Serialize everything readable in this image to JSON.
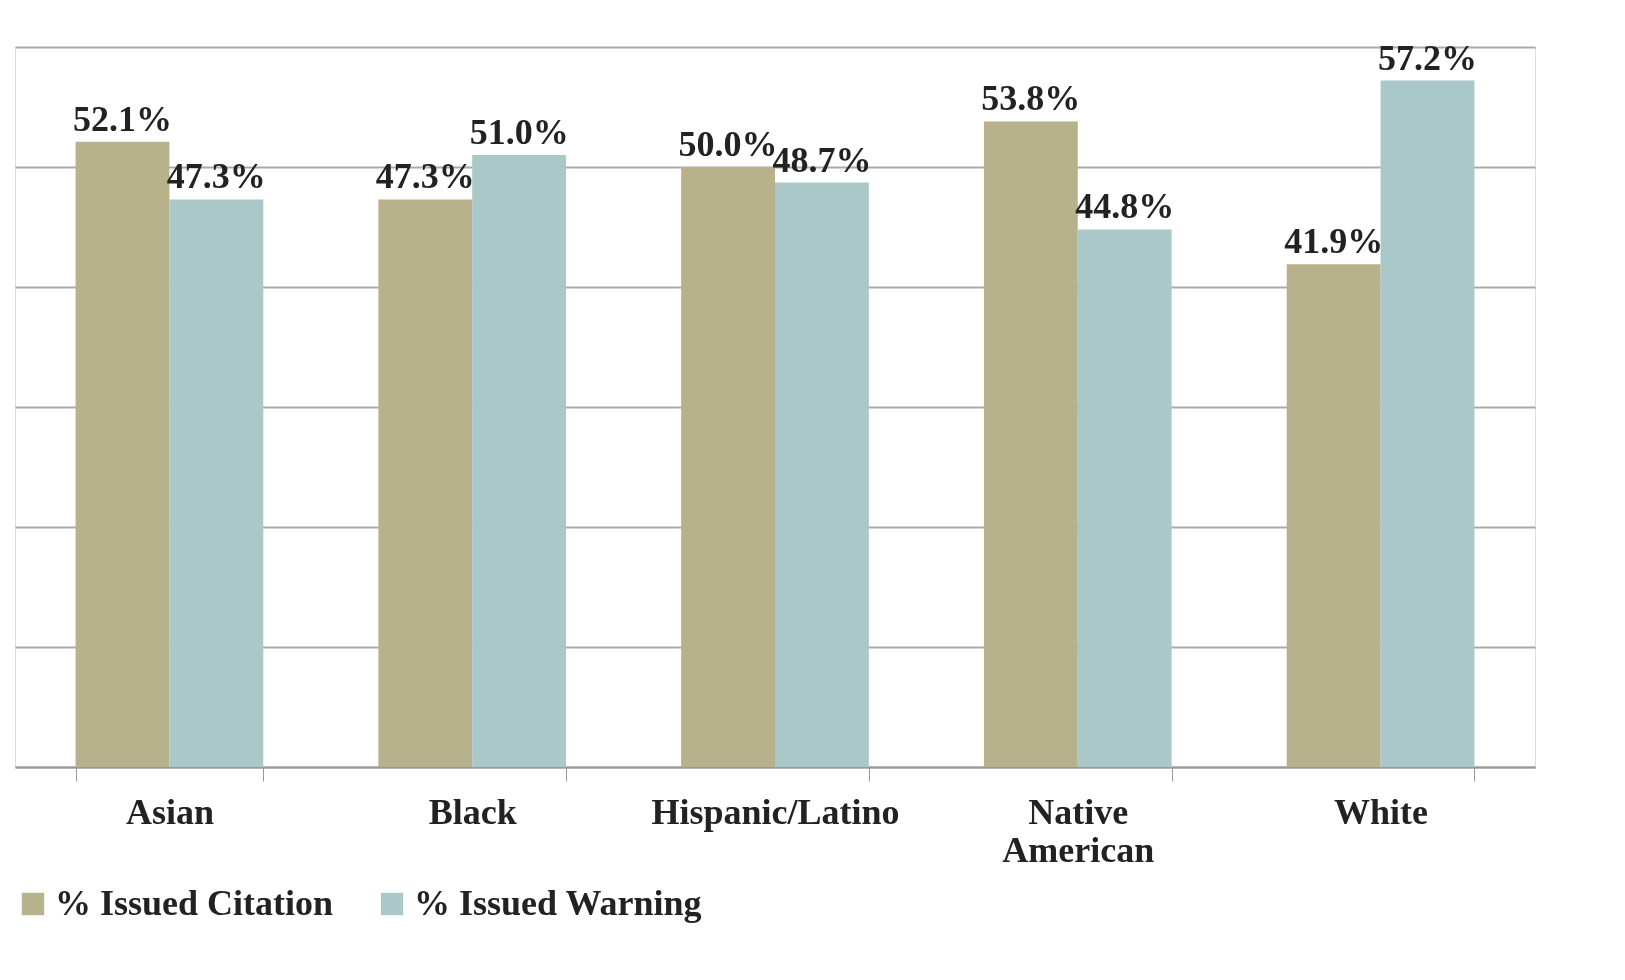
{
  "chart_data": {
    "type": "bar",
    "categories": [
      "Asian",
      "Black",
      "Hispanic/Latino",
      "Native American",
      "White"
    ],
    "series": [
      {
        "name": "% Issued Citation",
        "color": "#b8b28c",
        "values": [
          52.1,
          47.3,
          50.0,
          53.8,
          41.9
        ],
        "value_labels": [
          "52.1%",
          "47.3%",
          "50.0%",
          "53.8%",
          "41.9%"
        ]
      },
      {
        "name": "% Issued Warning",
        "color": "#abc8c8",
        "values": [
          47.3,
          51.0,
          48.7,
          44.8,
          57.2
        ],
        "value_labels": [
          "47.3%",
          "51.0%",
          "48.7%",
          "44.8%",
          "57.2%"
        ]
      }
    ],
    "ylim": [
      0,
      60
    ],
    "yticks": [
      {
        "value": 0,
        "label": null
      },
      {
        "value": 10,
        "label": null
      },
      {
        "value": 20,
        "label": null
      },
      {
        "value": 30,
        "label": null
      },
      {
        "value": 40,
        "label": null
      },
      {
        "value": 50,
        "label": null
      },
      {
        "value": 60,
        "label": null
      }
    ],
    "tick_labels": "x",
    "grid": "y",
    "legend": "bottom"
  }
}
